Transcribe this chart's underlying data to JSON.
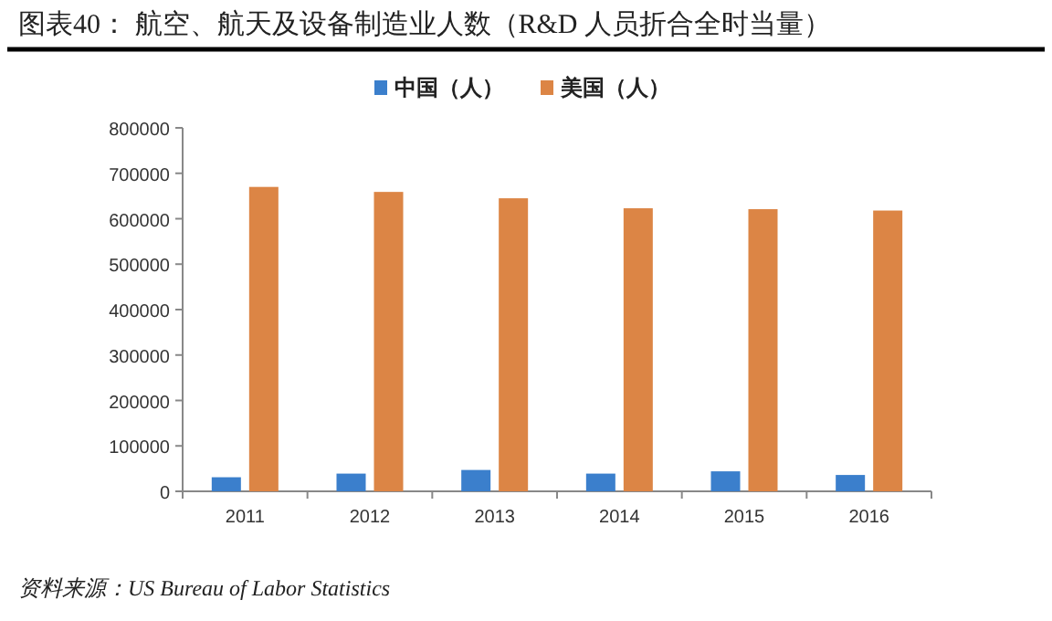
{
  "chart_data": {
    "type": "bar",
    "title": "图表40：  航空、航天及设备制造业人数（R&D 人员折合全时当量）",
    "categories": [
      "2011",
      "2012",
      "2013",
      "2014",
      "2015",
      "2016"
    ],
    "series": [
      {
        "name": "中国（人）",
        "color": "#3b7fcc",
        "values": [
          31000,
          39000,
          47000,
          39000,
          44000,
          36000
        ]
      },
      {
        "name": "美国（人）",
        "color": "#dc8545",
        "values": [
          670000,
          659000,
          645000,
          623000,
          621000,
          618000
        ]
      }
    ],
    "ylim": [
      0,
      800000
    ],
    "yticks": [
      0,
      100000,
      200000,
      300000,
      400000,
      500000,
      600000,
      700000,
      800000
    ],
    "grid": false,
    "legend": "top",
    "annotations": [
      "资料来源：US Bureau of Labor Statistics"
    ]
  }
}
